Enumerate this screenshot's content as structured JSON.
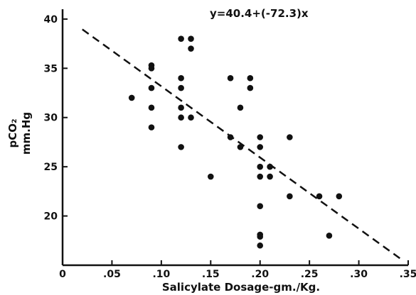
{
  "chart_data": {
    "type": "scatter",
    "title": "",
    "equation": "y=40.4+(-72.3)x",
    "xlabel": "Salicylate Dosage-gm./Kg.",
    "ylabel_line1": "pCO₂",
    "ylabel_line2": "mm.Hg",
    "xlim": [
      0,
      0.35
    ],
    "ylim": [
      15,
      41
    ],
    "x_ticks": [
      {
        "value": 0,
        "label": "0"
      },
      {
        "value": 0.05,
        "label": ".05"
      },
      {
        "value": 0.1,
        "label": ".10"
      },
      {
        "value": 0.15,
        "label": ".15"
      },
      {
        "value": 0.2,
        "label": ".20"
      },
      {
        "value": 0.25,
        "label": ".25"
      },
      {
        "value": 0.3,
        "label": ".30"
      },
      {
        "value": 0.35,
        "label": ".35"
      }
    ],
    "y_ticks": [
      {
        "value": 20,
        "label": "20"
      },
      {
        "value": 25,
        "label": "25"
      },
      {
        "value": 30,
        "label": "30"
      },
      {
        "value": 35,
        "label": "35"
      },
      {
        "value": 40,
        "label": "40"
      }
    ],
    "points": [
      {
        "x": 0.07,
        "y": 32
      },
      {
        "x": 0.09,
        "y": 35.3
      },
      {
        "x": 0.09,
        "y": 35
      },
      {
        "x": 0.09,
        "y": 33
      },
      {
        "x": 0.09,
        "y": 31
      },
      {
        "x": 0.09,
        "y": 29
      },
      {
        "x": 0.12,
        "y": 38
      },
      {
        "x": 0.12,
        "y": 34
      },
      {
        "x": 0.12,
        "y": 33
      },
      {
        "x": 0.12,
        "y": 31
      },
      {
        "x": 0.12,
        "y": 30
      },
      {
        "x": 0.12,
        "y": 27
      },
      {
        "x": 0.13,
        "y": 38
      },
      {
        "x": 0.13,
        "y": 37
      },
      {
        "x": 0.13,
        "y": 30
      },
      {
        "x": 0.15,
        "y": 24
      },
      {
        "x": 0.17,
        "y": 34
      },
      {
        "x": 0.17,
        "y": 28
      },
      {
        "x": 0.18,
        "y": 31
      },
      {
        "x": 0.18,
        "y": 27
      },
      {
        "x": 0.19,
        "y": 34
      },
      {
        "x": 0.19,
        "y": 33
      },
      {
        "x": 0.2,
        "y": 28
      },
      {
        "x": 0.2,
        "y": 27
      },
      {
        "x": 0.2,
        "y": 25
      },
      {
        "x": 0.2,
        "y": 24
      },
      {
        "x": 0.2,
        "y": 21
      },
      {
        "x": 0.2,
        "y": 18.1
      },
      {
        "x": 0.2,
        "y": 17.9
      },
      {
        "x": 0.2,
        "y": 17
      },
      {
        "x": 0.21,
        "y": 25
      },
      {
        "x": 0.21,
        "y": 24
      },
      {
        "x": 0.23,
        "y": 28
      },
      {
        "x": 0.23,
        "y": 22
      },
      {
        "x": 0.26,
        "y": 22
      },
      {
        "x": 0.27,
        "y": 18
      },
      {
        "x": 0.28,
        "y": 22
      }
    ],
    "regression": {
      "intercept": 40.4,
      "slope": -72.3,
      "x_range": [
        0.02,
        0.345
      ],
      "style": "dashed"
    },
    "grid": false,
    "legend": "none"
  }
}
